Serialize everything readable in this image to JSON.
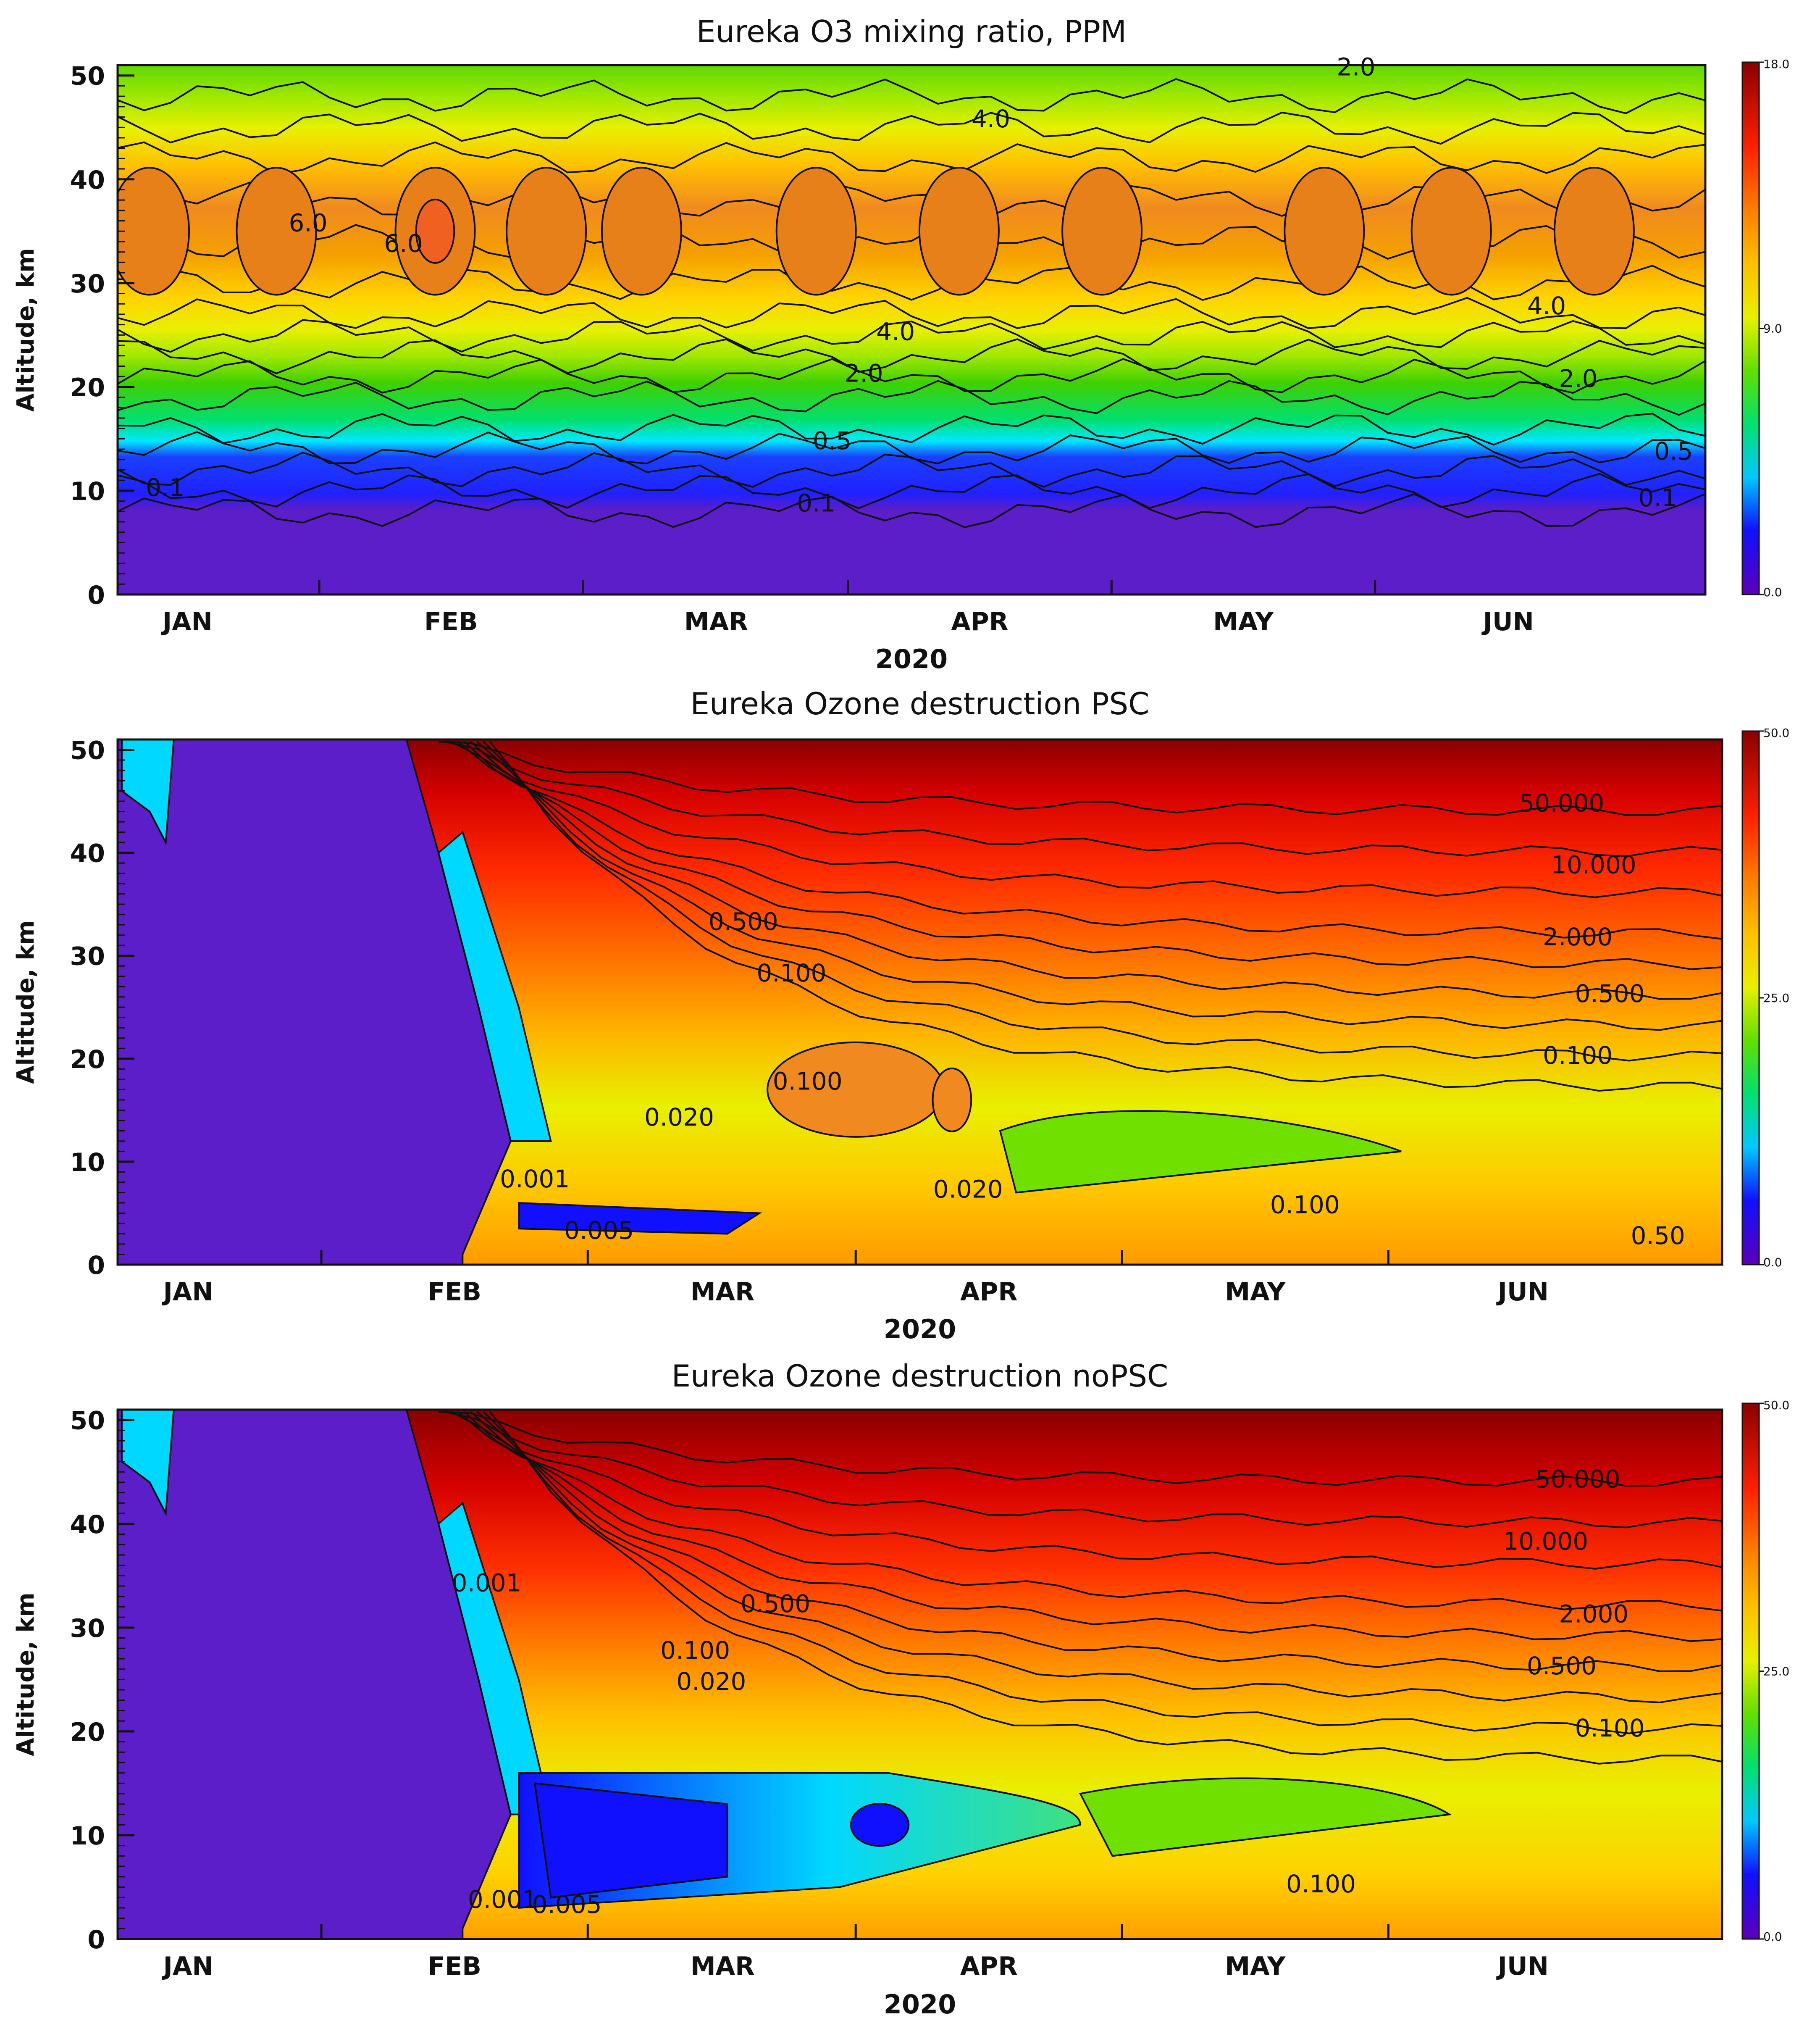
{
  "chart_data": [
    {
      "type": "heatmap",
      "title": "Eureka O3 mixing ratio, PPM",
      "xlabel": "2020",
      "ylabel": "Altitude, km",
      "x_ticks": [
        "JAN",
        "FEB",
        "MAR",
        "APR",
        "MAY",
        "JUN"
      ],
      "y_ticks": [
        "0",
        "10",
        "20",
        "30",
        "40",
        "50"
      ],
      "ylim": [
        0,
        51
      ],
      "colorbar": {
        "min": "0.0",
        "mid": "9.0",
        "max": "18.0"
      },
      "contour_labels": [
        "2.0",
        "4.0",
        "6.0",
        "6.0",
        "4.0",
        "2.0",
        "0.5",
        "0.1",
        "0.1",
        "4.0",
        "2.0",
        "0.5",
        "0.1"
      ],
      "profile": [
        {
          "altitude": 0,
          "value": 0.0
        },
        {
          "altitude": 8,
          "value": 0.1
        },
        {
          "altitude": 12,
          "value": 0.3
        },
        {
          "altitude": 15,
          "value": 0.5
        },
        {
          "altitude": 19,
          "value": 1.5
        },
        {
          "altitude": 22,
          "value": 2.0
        },
        {
          "altitude": 26,
          "value": 4.0
        },
        {
          "altitude": 35,
          "value": 6.0
        },
        {
          "altitude": 42,
          "value": 4.0
        },
        {
          "altitude": 48,
          "value": 2.0
        },
        {
          "altitude": 51,
          "value": 1.5
        }
      ]
    },
    {
      "type": "heatmap",
      "title": "Eureka Ozone destruction PSC",
      "xlabel": "2020",
      "ylabel": "Altitude, km",
      "x_ticks": [
        "JAN",
        "FEB",
        "MAR",
        "APR",
        "MAY",
        "JUN"
      ],
      "y_ticks": [
        "0",
        "10",
        "20",
        "30",
        "40",
        "50"
      ],
      "ylim": [
        0,
        51
      ],
      "colorbar": {
        "min": "0.0",
        "mid": "25.0",
        "max": "50.0"
      },
      "contour_labels": [
        "50.000",
        "10.000",
        "2.000",
        "0.500",
        "0.100",
        "0.500",
        "0.100",
        "0.100",
        "0.020",
        "0.001",
        "0.005",
        "0.020",
        "0.100",
        "0.50"
      ]
    },
    {
      "type": "heatmap",
      "title": "Eureka Ozone destruction noPSC",
      "xlabel": "2020",
      "ylabel": "Altitude, km",
      "x_ticks": [
        "JAN",
        "FEB",
        "MAR",
        "APR",
        "MAY",
        "JUN"
      ],
      "y_ticks": [
        "0",
        "10",
        "20",
        "30",
        "40",
        "50"
      ],
      "ylim": [
        0,
        51
      ],
      "colorbar": {
        "min": "0.0",
        "mid": "25.0",
        "max": "50.0"
      },
      "contour_labels": [
        "50.000",
        "10.000",
        "2.000",
        "0.500",
        "0.100",
        "0.500",
        "0.100",
        "0.020",
        "0.001",
        "0.005",
        "0.001",
        "0.100"
      ]
    }
  ]
}
